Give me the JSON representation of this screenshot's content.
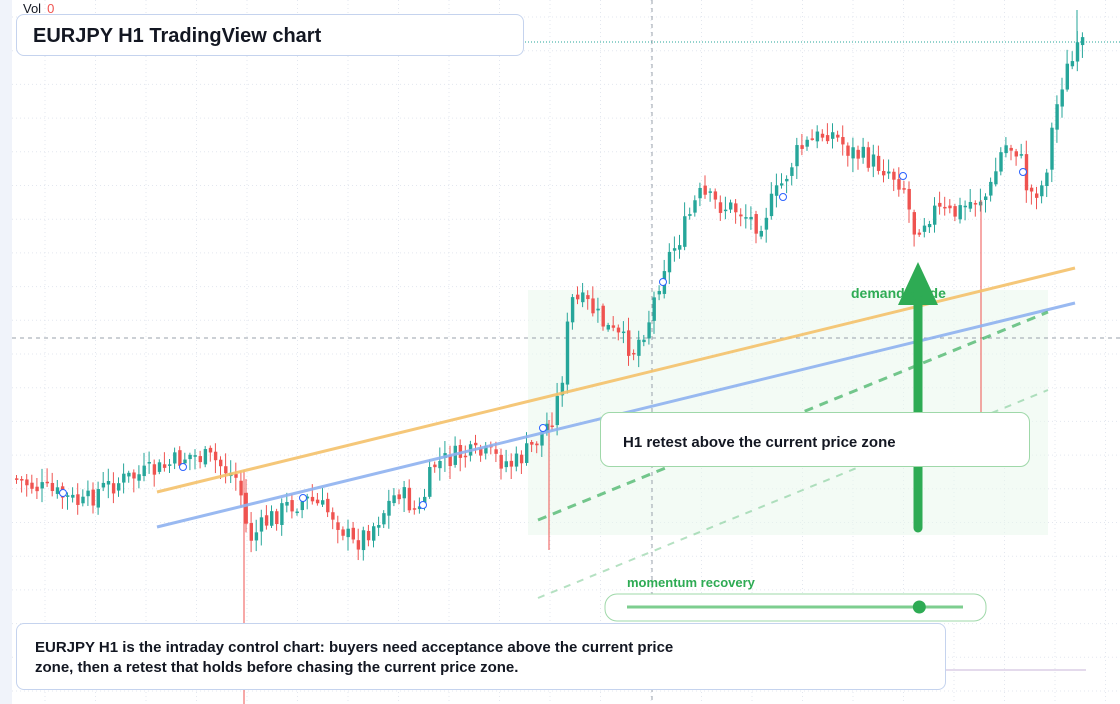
{
  "volume": {
    "label": "Vol",
    "value": "0"
  },
  "title": "EURJPY H1 TradingView chart",
  "callout_text": "H1 retest above the current price zone",
  "demand_label": "demand guide",
  "momentum_label": "momentum recovery",
  "momentum_level": 0.87,
  "summary": "EURJPY H1 is the intraday control chart: buyers need acceptance above the current price zone, then a retest that holds before chasing the current price zone.",
  "colors": {
    "up": "#26a69a",
    "down": "#ef5350",
    "resistance_line": "#f5c26b",
    "support_line": "#8fb2f0",
    "guide_green": "#2eab54",
    "zone_fill": "#eaf7ec",
    "last_price_line": "#26a69a"
  },
  "chart_data": {
    "type": "candlestick",
    "title": "EURJPY H1 TradingView chart",
    "axes_labels": "none",
    "price_scale": "not shown",
    "trend": "ranging lows, rally, pullback to demand, breakout to new highs",
    "series": [
      {
        "name": "price",
        "kind": "candles",
        "bias": "bullish breakout"
      }
    ]
  }
}
